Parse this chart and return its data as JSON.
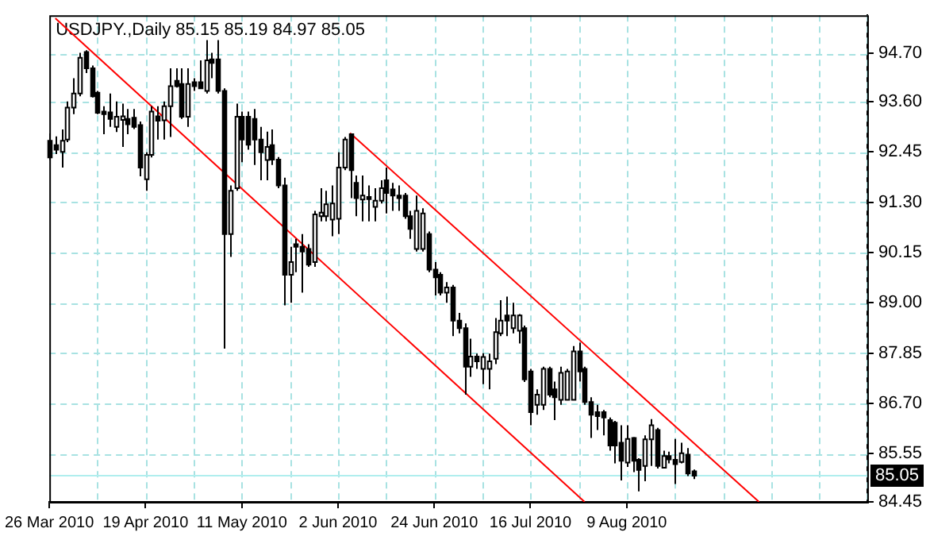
{
  "chart_data": {
    "type": "candlestick",
    "title": "USDJPY.,Daily 85.15 85.19 84.97 85.05",
    "categories": [
      "26 Mar 2010",
      null,
      null,
      null,
      null,
      null,
      null,
      null,
      null,
      null,
      null,
      null,
      null,
      null,
      null,
      null,
      "19 Apr 2010",
      null,
      null,
      null,
      null,
      null,
      null,
      null,
      null,
      null,
      null,
      null,
      null,
      null,
      null,
      null,
      "11 May 2010",
      null,
      null,
      null,
      null,
      null,
      null,
      null,
      null,
      null,
      null,
      null,
      null,
      null,
      null,
      null,
      "2 Jun 2010",
      null,
      null,
      null,
      null,
      null,
      null,
      null,
      null,
      null,
      null,
      null,
      null,
      null,
      null,
      null,
      "24 Jun 2010",
      null,
      null,
      null,
      null,
      null,
      null,
      null,
      null,
      null,
      null,
      null,
      null,
      null,
      null,
      null,
      "16 Jul 2010",
      null,
      null,
      null,
      null,
      null,
      null,
      null,
      null,
      null,
      null,
      null,
      null,
      null,
      null,
      null,
      "9 Aug 2010",
      null,
      null,
      null,
      null,
      null,
      null,
      null,
      null,
      null,
      null,
      null,
      null,
      null,
      null,
      null,
      null,
      null,
      null,
      null,
      null,
      null,
      null,
      null,
      null,
      null,
      null,
      null,
      null,
      null,
      null,
      null,
      null,
      null,
      null,
      null,
      null,
      null,
      null,
      null,
      null
    ],
    "ohlc": [
      [
        92.7,
        92.87,
        92.26,
        92.32
      ],
      [
        92.6,
        92.8,
        92.4,
        92.5
      ],
      [
        92.45,
        92.96,
        92.09,
        92.7
      ],
      [
        92.73,
        93.6,
        92.67,
        93.46
      ],
      [
        93.46,
        94.13,
        93.31,
        93.78
      ],
      [
        93.78,
        94.71,
        93.72,
        94.6
      ],
      [
        94.73,
        94.77,
        94.25,
        94.36
      ],
      [
        94.36,
        94.42,
        93.69,
        93.72
      ],
      [
        93.8,
        93.84,
        93.31,
        93.34
      ],
      [
        93.37,
        93.49,
        92.85,
        93.31
      ],
      [
        93.35,
        93.78,
        93.02,
        93.2
      ],
      [
        93.02,
        93.6,
        92.9,
        93.25
      ],
      [
        93.18,
        93.55,
        92.56,
        93.26
      ],
      [
        93.2,
        93.43,
        92.85,
        93.08
      ],
      [
        93.23,
        93.43,
        92.97,
        93.02
      ],
      [
        93.06,
        93.14,
        91.89,
        92.09
      ],
      [
        91.82,
        92.44,
        91.56,
        92.38
      ],
      [
        92.38,
        93.49,
        92.32,
        93.37
      ],
      [
        93.26,
        93.49,
        92.73,
        93.16
      ],
      [
        93.17,
        93.6,
        92.73,
        93.49
      ],
      [
        93.49,
        94.36,
        92.79,
        93.95
      ],
      [
        94.07,
        94.36,
        93.92,
        93.95
      ],
      [
        94.0,
        94.36,
        93.2,
        93.25
      ],
      [
        93.25,
        94.36,
        93.02,
        94.0
      ],
      [
        94.04,
        94.13,
        93.84,
        93.95
      ],
      [
        94.04,
        94.54,
        93.9,
        93.9
      ],
      [
        93.84,
        95.0,
        93.78,
        94.54
      ],
      [
        94.56,
        94.71,
        94.13,
        94.48
      ],
      [
        94.56,
        95.0,
        93.78,
        93.84
      ],
      [
        93.84,
        93.9,
        87.95,
        90.57
      ],
      [
        90.57,
        91.68,
        90.05,
        91.56
      ],
      [
        91.62,
        93.55,
        91.56,
        93.25
      ],
      [
        93.25,
        93.37,
        92.21,
        92.73
      ],
      [
        93.25,
        93.37,
        92.5,
        92.61
      ],
      [
        93.2,
        93.43,
        92.15,
        92.73
      ],
      [
        92.73,
        93.02,
        91.8,
        92.44
      ],
      [
        92.26,
        92.91,
        91.8,
        92.56
      ],
      [
        92.6,
        92.96,
        92.15,
        92.27
      ],
      [
        92.27,
        92.33,
        91.62,
        91.68
      ],
      [
        91.68,
        91.86,
        88.94,
        89.64
      ],
      [
        89.64,
        90.28,
        89.0,
        89.93
      ],
      [
        90.34,
        90.46,
        89.7,
        90.28
      ],
      [
        90.28,
        90.57,
        89.23,
        90.17
      ],
      [
        90.23,
        90.34,
        89.82,
        89.87
      ],
      [
        89.93,
        91.1,
        89.82,
        91.02
      ],
      [
        90.98,
        91.62,
        90.86,
        91.06
      ],
      [
        90.98,
        91.56,
        90.86,
        91.25
      ],
      [
        90.9,
        91.68,
        90.52,
        91.27
      ],
      [
        90.92,
        92.44,
        90.57,
        92.09
      ],
      [
        92.09,
        92.79,
        92.03,
        92.73
      ],
      [
        92.85,
        92.87,
        91.39,
        92.03
      ],
      [
        91.74,
        91.91,
        90.98,
        91.39
      ],
      [
        91.36,
        91.91,
        90.86,
        91.45
      ],
      [
        91.42,
        91.68,
        90.86,
        91.37
      ],
      [
        91.19,
        91.62,
        90.86,
        91.33
      ],
      [
        91.33,
        91.8,
        91.27,
        91.62
      ],
      [
        91.8,
        92.09,
        91.04,
        91.51
      ],
      [
        91.59,
        91.74,
        91.1,
        91.45
      ],
      [
        91.45,
        91.68,
        91.1,
        91.39
      ],
      [
        91.45,
        91.51,
        90.92,
        90.98
      ],
      [
        90.98,
        91.1,
        90.46,
        90.69
      ],
      [
        90.23,
        91.45,
        90.17,
        91.1
      ],
      [
        90.23,
        91.16,
        90.17,
        91.04
      ],
      [
        90.57,
        90.63,
        89.7,
        89.76
      ],
      [
        89.76,
        89.93,
        89.17,
        89.58
      ],
      [
        89.64,
        89.7,
        89.17,
        89.23
      ],
      [
        89.23,
        89.47,
        89.0,
        89.35
      ],
      [
        89.35,
        89.41,
        88.24,
        88.59
      ],
      [
        88.59,
        88.77,
        88.3,
        88.42
      ],
      [
        88.42,
        88.53,
        86.9,
        87.54
      ],
      [
        87.54,
        88.18,
        87.31,
        87.77
      ],
      [
        87.77,
        87.84,
        87.49,
        87.66
      ],
      [
        87.49,
        87.85,
        87.14,
        87.76
      ],
      [
        87.49,
        87.84,
        87.02,
        87.66
      ],
      [
        87.72,
        88.65,
        87.6,
        88.33
      ],
      [
        88.3,
        89.06,
        88.24,
        88.59
      ],
      [
        88.71,
        89.14,
        88.24,
        88.59
      ],
      [
        88.42,
        89.0,
        88.3,
        88.71
      ],
      [
        88.36,
        88.74,
        88.07,
        88.71
      ],
      [
        88.42,
        88.48,
        87.19,
        87.25
      ],
      [
        87.43,
        87.49,
        86.2,
        86.5
      ],
      [
        86.67,
        87.02,
        86.44,
        86.9
      ],
      [
        86.67,
        87.54,
        86.55,
        87.49
      ],
      [
        87.49,
        87.54,
        86.84,
        86.9
      ],
      [
        87.02,
        87.2,
        86.32,
        86.84
      ],
      [
        86.78,
        87.54,
        86.67,
        87.4
      ],
      [
        86.78,
        87.49,
        86.78,
        87.43
      ],
      [
        86.78,
        88.01,
        86.78,
        87.89
      ],
      [
        87.89,
        88.09,
        87.2,
        87.43
      ],
      [
        87.49,
        87.54,
        86.67,
        86.73
      ],
      [
        86.73,
        86.84,
        85.91,
        86.44
      ],
      [
        86.5,
        86.67,
        86.09,
        86.41
      ],
      [
        86.5,
        86.55,
        85.97,
        86.38
      ],
      [
        86.32,
        86.38,
        85.62,
        85.74
      ],
      [
        86.26,
        86.3,
        85.33,
        85.74
      ],
      [
        85.8,
        86.2,
        84.94,
        85.39
      ],
      [
        85.35,
        86.2,
        85.25,
        85.89
      ],
      [
        85.91,
        85.93,
        85.13,
        85.39
      ],
      [
        85.41,
        85.45,
        84.69,
        85.18
      ],
      [
        85.27,
        85.97,
        84.92,
        85.88
      ],
      [
        85.88,
        86.34,
        85.27,
        86.2
      ],
      [
        86.09,
        86.14,
        85.21,
        85.27
      ],
      [
        85.23,
        85.62,
        85.21,
        85.5
      ],
      [
        85.5,
        85.6,
        85.33,
        85.42
      ],
      [
        85.41,
        85.89,
        84.86,
        85.31
      ],
      [
        85.36,
        85.8,
        85.33,
        85.56
      ],
      [
        85.53,
        85.68,
        85.04,
        85.1
      ],
      [
        85.15,
        85.19,
        84.97,
        85.05
      ],
      null,
      null,
      null,
      null,
      null,
      null,
      null,
      null,
      null,
      null,
      null,
      null,
      null,
      null,
      null,
      null,
      null,
      null,
      null,
      null,
      null,
      null,
      null,
      null,
      null,
      null,
      null,
      null,
      null
    ],
    "series": [
      {
        "type": "line",
        "color": "#ff0000",
        "values": [
          null,
          95.5,
          null,
          null,
          null,
          null,
          null,
          null,
          null,
          null,
          null,
          null,
          null,
          null,
          null,
          null,
          null,
          null,
          null,
          null,
          null,
          null,
          null,
          null,
          null,
          null,
          null,
          null,
          null,
          null,
          null,
          null,
          null,
          null,
          null,
          null,
          null,
          null,
          null,
          null,
          null,
          null,
          null,
          null,
          null,
          null,
          null,
          null,
          null,
          null,
          null,
          null,
          null,
          null,
          null,
          null,
          null,
          null,
          null,
          null,
          null,
          null,
          null,
          null,
          null,
          null,
          null,
          null,
          null,
          null,
          null,
          null,
          null,
          null,
          null,
          null,
          null,
          null,
          null,
          null,
          null,
          null,
          null,
          null,
          null,
          null,
          null,
          null,
          null,
          84.45,
          null,
          null,
          null,
          null,
          null,
          null,
          null,
          null,
          null,
          null,
          null,
          null,
          null,
          null,
          null,
          null,
          null,
          null,
          null,
          null,
          null,
          null,
          null,
          null,
          null,
          null,
          null,
          null,
          null,
          null,
          null,
          null,
          null,
          null,
          null,
          null,
          null,
          null,
          null,
          null,
          null,
          null,
          null,
          null,
          null,
          null,
          null
        ]
      },
      {
        "type": "line",
        "color": "#ff0000",
        "values": [
          null,
          null,
          null,
          null,
          null,
          null,
          null,
          null,
          null,
          null,
          null,
          null,
          null,
          null,
          null,
          null,
          null,
          null,
          null,
          null,
          null,
          null,
          null,
          null,
          null,
          null,
          null,
          null,
          null,
          null,
          null,
          null,
          null,
          null,
          null,
          null,
          null,
          null,
          null,
          null,
          null,
          null,
          null,
          null,
          null,
          null,
          null,
          null,
          null,
          null,
          92.88,
          null,
          null,
          null,
          null,
          null,
          null,
          null,
          null,
          null,
          null,
          null,
          null,
          null,
          null,
          null,
          null,
          null,
          null,
          null,
          null,
          null,
          null,
          null,
          null,
          null,
          null,
          null,
          null,
          null,
          null,
          null,
          null,
          null,
          null,
          null,
          null,
          null,
          null,
          null,
          null,
          null,
          null,
          null,
          null,
          null,
          null,
          null,
          null,
          null,
          null,
          null,
          null,
          null,
          null,
          null,
          null,
          null,
          null,
          null,
          null,
          null,
          null,
          null,
          null,
          null,
          null,
          null,
          84.45,
          null,
          null,
          null,
          null,
          null,
          null,
          null,
          null,
          null,
          null,
          null,
          null,
          null,
          null,
          null,
          null,
          null,
          null
        ]
      }
    ],
    "ylim": [
      84.45,
      95.57
    ],
    "yticks": [
      {
        "value": 84.45,
        "label": "84.45"
      },
      {
        "value": 85.55,
        "label": "85.55"
      },
      {
        "value": 86.7,
        "label": "86.70"
      },
      {
        "value": 87.85,
        "label": "87.85"
      },
      {
        "value": 89.0,
        "label": "89.00"
      },
      {
        "value": 90.15,
        "label": "90.15"
      },
      {
        "value": 91.3,
        "label": "91.30"
      },
      {
        "value": 92.45,
        "label": "92.45"
      },
      {
        "value": 93.6,
        "label": "93.60"
      },
      {
        "value": 94.7,
        "label": "94.70"
      }
    ],
    "ref_lines": [
      {
        "axis": "y",
        "value": 85.05,
        "label": "85.05",
        "color": "#b0eeee"
      }
    ],
    "grid": true,
    "marker": "none",
    "line_style": "solid"
  }
}
